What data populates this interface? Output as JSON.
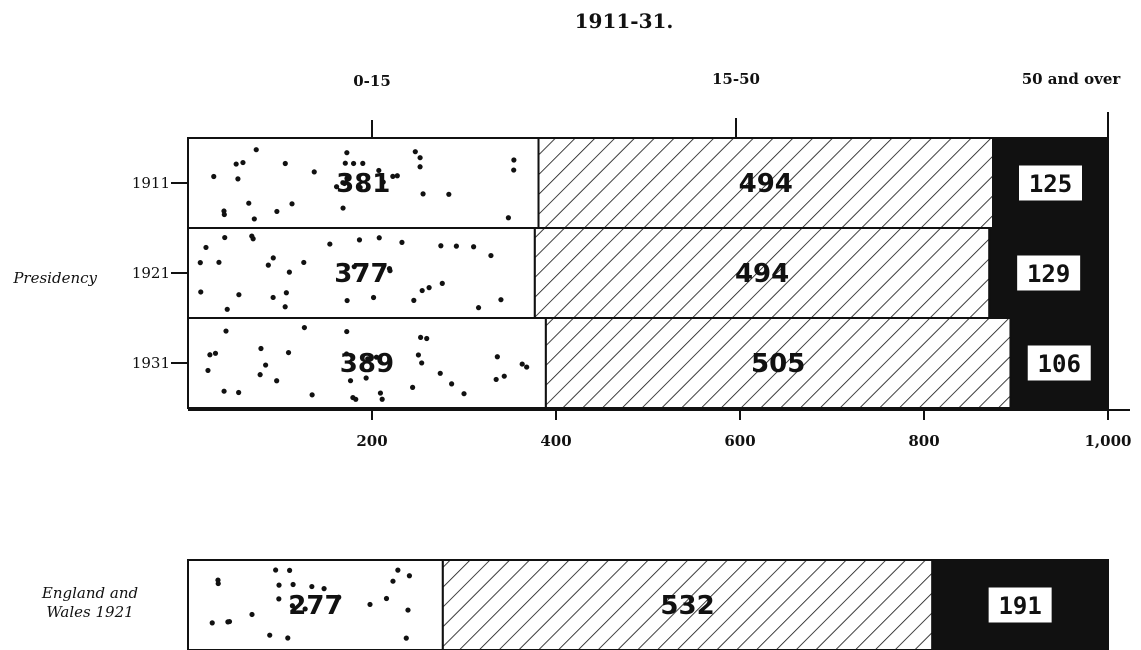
{
  "chart_data": {
    "type": "bar",
    "orientation": "horizontal",
    "stacked": true,
    "title": "1911-31.",
    "series_labels": [
      "0-15",
      "15-50",
      "50 and over"
    ],
    "xlim": [
      0,
      1000
    ],
    "x_ticks": [
      "200",
      "400",
      "600",
      "800",
      "1,000"
    ],
    "group_label": "Presidency",
    "rows": [
      {
        "label": "1911",
        "values": [
          381,
          494,
          125
        ]
      },
      {
        "label": "1921",
        "values": [
          377,
          494,
          129
        ]
      },
      {
        "label": "1931",
        "values": [
          389,
          505,
          106
        ]
      }
    ],
    "comparison": {
      "label_line1": "England and",
      "label_line2": "Wales 1921",
      "values": [
        277,
        532,
        191
      ]
    },
    "patterns": [
      "dotted",
      "hatched",
      "solid black"
    ]
  }
}
